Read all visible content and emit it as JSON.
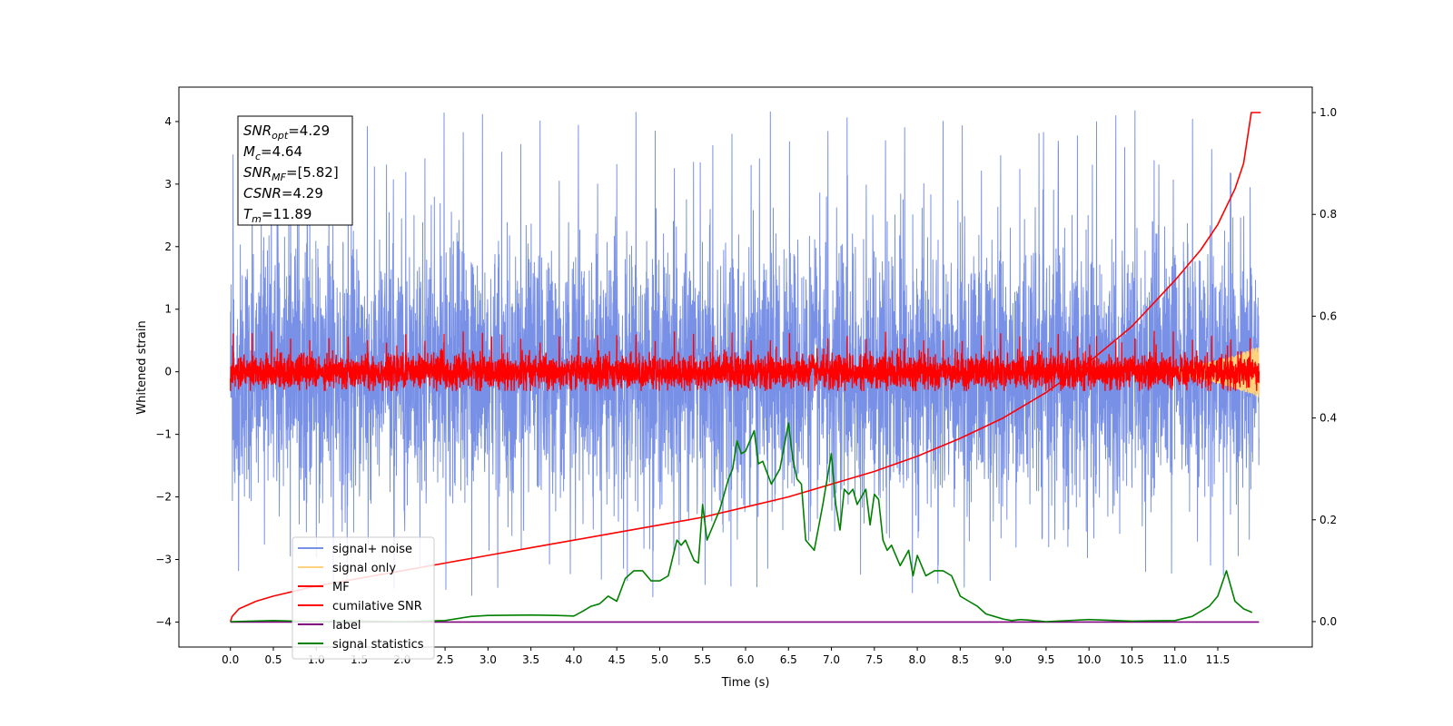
{
  "chart_data": {
    "type": "line",
    "xlabel": "Time (s)",
    "ylabel": "Whitened strain",
    "xlim": [
      -0.6,
      12.6
    ],
    "ylim": [
      -4.4,
      4.55
    ],
    "ylim_right": [
      -0.05,
      1.05
    ],
    "x_ticks": [
      "0.0",
      "0.5",
      "1.0",
      "1.5",
      "2.0",
      "2.5",
      "3.0",
      "3.5",
      "4.0",
      "4.5",
      "5.0",
      "5.5",
      "6.0",
      "6.5",
      "7.0",
      "7.5",
      "8.0",
      "8.5",
      "9.0",
      "9.5",
      "10.0",
      "10.5",
      "11.0",
      "11.5"
    ],
    "y_ticks_left": [
      "4",
      "3",
      "2",
      "1",
      "0",
      "−1",
      "−2",
      "−3",
      "−4"
    ],
    "y_ticks_right": [
      "1.0",
      "0.8",
      "0.6",
      "0.4",
      "0.2",
      "0.0"
    ],
    "annotation": {
      "lines": [
        {
          "base": "SNR",
          "sub": "opt",
          "value": "=4.29"
        },
        {
          "base": "M",
          "sub": "c",
          "value": "=4.64"
        },
        {
          "base": "SNR",
          "sub": "MF",
          "value": "=[5.82]"
        },
        {
          "base": "CSNR",
          "sub": "",
          "value": "=4.29"
        },
        {
          "base": "T",
          "sub": "m",
          "value": "=11.89"
        }
      ]
    },
    "legend_position": "lower-left",
    "legend": [
      {
        "label": "signal+ noise",
        "color": "#7890e6"
      },
      {
        "label": "signal only",
        "color": "#ffd27f"
      },
      {
        "label": "MF",
        "color": "#ff0000"
      },
      {
        "label": "cumilative SNR",
        "color": "#ff0000"
      },
      {
        "label": "label",
        "color": "#800080"
      },
      {
        "label": "signal statistics",
        "color": "#008000"
      }
    ],
    "series": [
      {
        "name": "signal+ noise",
        "axis": "left",
        "color": "#7890e6",
        "kind": "noise",
        "x_range": [
          0,
          11.98
        ],
        "std": 1.0,
        "peak_min": -3.6,
        "peak_max": 4.2
      },
      {
        "name": "signal only",
        "axis": "left",
        "color": "#ffd27f",
        "kind": "chirp",
        "x_range": [
          10.5,
          11.98
        ],
        "amplitude_max": 0.4
      },
      {
        "name": "MF",
        "axis": "left",
        "color": "#ff0000",
        "kind": "noise",
        "x_range": [
          0,
          11.98
        ],
        "std": 0.13,
        "peak_min": -0.3,
        "peak_max": 0.65
      },
      {
        "name": "cumilative SNR",
        "axis": "right",
        "x": [
          0.0,
          0.02,
          0.1,
          0.3,
          0.5,
          1.0,
          1.5,
          2.0,
          2.5,
          3.0,
          3.5,
          4.0,
          4.5,
          5.0,
          5.5,
          6.0,
          6.5,
          7.0,
          7.5,
          8.0,
          8.5,
          9.0,
          9.5,
          10.0,
          10.5,
          11.0,
          11.3,
          11.5,
          11.7,
          11.8,
          11.89,
          11.95,
          12.0
        ],
        "y": [
          0.0,
          0.01,
          0.025,
          0.04,
          0.05,
          0.07,
          0.085,
          0.1,
          0.115,
          0.13,
          0.145,
          0.16,
          0.175,
          0.19,
          0.205,
          0.225,
          0.245,
          0.27,
          0.295,
          0.325,
          0.36,
          0.4,
          0.45,
          0.51,
          0.58,
          0.67,
          0.73,
          0.78,
          0.85,
          0.9,
          1.0,
          1.0,
          1.0
        ]
      },
      {
        "name": "label",
        "axis": "left",
        "x": [
          0.0,
          11.98
        ],
        "y": [
          -4.0,
          -4.0
        ]
      },
      {
        "name": "signal statistics",
        "axis": "right",
        "x": [
          0.0,
          0.5,
          1.0,
          1.5,
          2.0,
          2.5,
          2.8,
          3.0,
          3.5,
          3.8,
          4.0,
          4.1,
          4.2,
          4.3,
          4.4,
          4.5,
          4.6,
          4.7,
          4.8,
          4.9,
          5.0,
          5.1,
          5.2,
          5.25,
          5.3,
          5.4,
          5.45,
          5.5,
          5.55,
          5.6,
          5.7,
          5.8,
          5.85,
          5.9,
          5.95,
          6.0,
          6.1,
          6.15,
          6.2,
          6.3,
          6.4,
          6.5,
          6.55,
          6.6,
          6.65,
          6.7,
          6.8,
          6.9,
          7.0,
          7.05,
          7.1,
          7.15,
          7.2,
          7.25,
          7.3,
          7.4,
          7.45,
          7.5,
          7.55,
          7.6,
          7.65,
          7.7,
          7.8,
          7.9,
          7.95,
          8.0,
          8.1,
          8.2,
          8.3,
          8.4,
          8.5,
          8.6,
          8.7,
          8.8,
          8.9,
          9.0,
          9.1,
          9.2,
          9.3,
          9.5,
          10.0,
          10.5,
          11.0,
          11.2,
          11.3,
          11.4,
          11.5,
          11.6,
          11.7,
          11.8,
          11.9
        ],
        "y": [
          0.0,
          0.002,
          0.0,
          0.001,
          0.0,
          0.002,
          0.01,
          0.012,
          0.013,
          0.012,
          0.011,
          0.02,
          0.03,
          0.035,
          0.05,
          0.04,
          0.085,
          0.1,
          0.1,
          0.08,
          0.08,
          0.09,
          0.16,
          0.15,
          0.16,
          0.12,
          0.115,
          0.23,
          0.16,
          0.18,
          0.22,
          0.28,
          0.3,
          0.355,
          0.33,
          0.335,
          0.375,
          0.31,
          0.315,
          0.27,
          0.3,
          0.39,
          0.32,
          0.28,
          0.27,
          0.16,
          0.14,
          0.23,
          0.33,
          0.23,
          0.18,
          0.26,
          0.25,
          0.26,
          0.23,
          0.26,
          0.19,
          0.25,
          0.24,
          0.16,
          0.14,
          0.15,
          0.11,
          0.14,
          0.09,
          0.13,
          0.09,
          0.1,
          0.1,
          0.09,
          0.05,
          0.04,
          0.03,
          0.015,
          0.01,
          0.005,
          0.002,
          0.004,
          0.003,
          0.0,
          0.004,
          0.001,
          0.002,
          0.01,
          0.02,
          0.03,
          0.05,
          0.1,
          0.04,
          0.025,
          0.018
        ]
      }
    ]
  }
}
